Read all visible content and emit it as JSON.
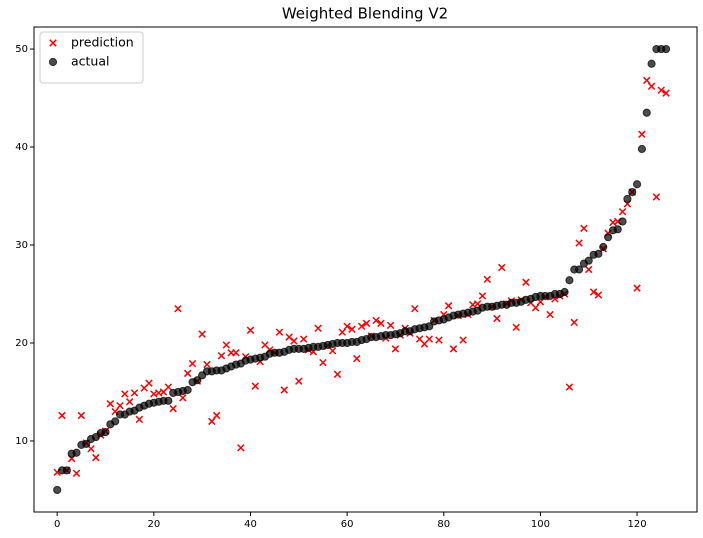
{
  "chart_data": {
    "type": "scatter",
    "title": "Weighted Blending V2",
    "x": [
      0,
      1,
      2,
      3,
      4,
      5,
      6,
      7,
      8,
      9,
      10,
      11,
      12,
      13,
      14,
      15,
      16,
      17,
      18,
      19,
      20,
      21,
      22,
      23,
      24,
      25,
      26,
      27,
      28,
      29,
      30,
      31,
      32,
      33,
      34,
      35,
      36,
      37,
      38,
      39,
      40,
      41,
      42,
      43,
      44,
      45,
      46,
      47,
      48,
      49,
      50,
      51,
      52,
      53,
      54,
      55,
      56,
      57,
      58,
      59,
      60,
      61,
      62,
      63,
      64,
      65,
      66,
      67,
      68,
      69,
      70,
      71,
      72,
      73,
      74,
      75,
      76,
      77,
      78,
      79,
      80,
      81,
      82,
      83,
      84,
      85,
      86,
      87,
      88,
      89,
      90,
      91,
      92,
      93,
      94,
      95,
      96,
      97,
      98,
      99,
      100,
      101,
      102,
      103,
      104,
      105,
      106,
      107,
      108,
      109,
      110,
      111,
      112,
      113,
      114,
      115,
      116,
      117,
      118,
      119,
      120,
      121,
      122,
      123,
      124,
      125,
      126
    ],
    "series": [
      {
        "name": "prediction",
        "color": "#ff0000",
        "marker": "x",
        "values": [
          6.8,
          12.6,
          7.0,
          8.2,
          6.7,
          12.6,
          9.8,
          9.2,
          8.3,
          10.6,
          11.0,
          13.8,
          13.0,
          13.6,
          14.8,
          14.0,
          14.9,
          12.2,
          15.4,
          15.9,
          14.8,
          14.9,
          15.0,
          15.5,
          13.3,
          23.5,
          14.4,
          16.9,
          17.9,
          16.1,
          20.9,
          17.8,
          12.0,
          12.6,
          18.7,
          19.8,
          19.0,
          19.0,
          9.3,
          18.6,
          21.3,
          15.6,
          18.1,
          19.8,
          19.3,
          19.0,
          21.1,
          15.2,
          20.6,
          20.2,
          16.1,
          20.4,
          19.3,
          19.1,
          21.5,
          18.0,
          19.7,
          19.2,
          16.8,
          21.1,
          21.7,
          21.4,
          18.4,
          21.7,
          22.0,
          20.7,
          22.3,
          22.0,
          20.5,
          21.8,
          19.4,
          20.8,
          21.5,
          21.0,
          23.5,
          20.4,
          19.9,
          20.4,
          22.3,
          20.3,
          22.9,
          23.8,
          19.4,
          22.8,
          20.3,
          22.9,
          23.9,
          24.0,
          24.8,
          26.5,
          23.7,
          22.5,
          27.7,
          24.0,
          24.3,
          21.6,
          24.4,
          26.2,
          24.1,
          23.6,
          24.2,
          24.7,
          22.9,
          24.5,
          24.8,
          25.0,
          15.5,
          22.1,
          30.2,
          31.7,
          27.5,
          25.2,
          24.9,
          29.6,
          31.2,
          32.3,
          32.4,
          33.4,
          34.2,
          35.4,
          25.6,
          41.3,
          46.8,
          46.2,
          34.9,
          45.8,
          45.5
        ]
      },
      {
        "name": "actual",
        "color": "#000000",
        "marker": "o",
        "values": [
          5.0,
          7.0,
          7.0,
          8.7,
          8.8,
          9.6,
          9.7,
          10.2,
          10.4,
          10.8,
          10.9,
          11.7,
          12.0,
          12.7,
          12.7,
          13.0,
          13.1,
          13.4,
          13.6,
          13.8,
          13.9,
          14.0,
          14.1,
          14.1,
          14.9,
          15.0,
          15.1,
          15.2,
          16.0,
          16.2,
          16.7,
          17.1,
          17.1,
          17.2,
          17.2,
          17.4,
          17.6,
          17.8,
          17.9,
          18.2,
          18.3,
          18.4,
          18.5,
          18.6,
          18.9,
          19.0,
          19.0,
          19.1,
          19.3,
          19.4,
          19.4,
          19.4,
          19.5,
          19.6,
          19.6,
          19.7,
          19.8,
          19.9,
          20.0,
          20.0,
          20.0,
          20.1,
          20.1,
          20.3,
          20.4,
          20.6,
          20.6,
          20.7,
          20.8,
          20.8,
          20.9,
          21.0,
          21.2,
          21.2,
          21.4,
          21.5,
          21.6,
          21.7,
          22.2,
          22.3,
          22.4,
          22.6,
          22.8,
          22.9,
          23.0,
          23.1,
          23.2,
          23.3,
          23.6,
          23.7,
          23.7,
          23.8,
          23.9,
          23.9,
          24.1,
          24.1,
          24.2,
          24.4,
          24.5,
          24.7,
          24.8,
          24.8,
          24.8,
          25.0,
          25.0,
          25.2,
          26.4,
          27.5,
          27.5,
          28.1,
          28.4,
          29.0,
          29.1,
          29.8,
          30.8,
          31.5,
          31.6,
          32.4,
          34.7,
          35.4,
          36.2,
          39.8,
          43.5,
          48.5,
          50.0,
          50.0,
          50.0
        ]
      }
    ],
    "xlim": [
      -4.8,
      132.4
    ],
    "ylim": [
      2.75,
      52.25
    ],
    "xticks": [
      0,
      20,
      40,
      60,
      80,
      100,
      120
    ],
    "yticks": [
      10,
      20,
      30,
      40,
      50
    ],
    "grid": false,
    "legend": "upper left"
  }
}
